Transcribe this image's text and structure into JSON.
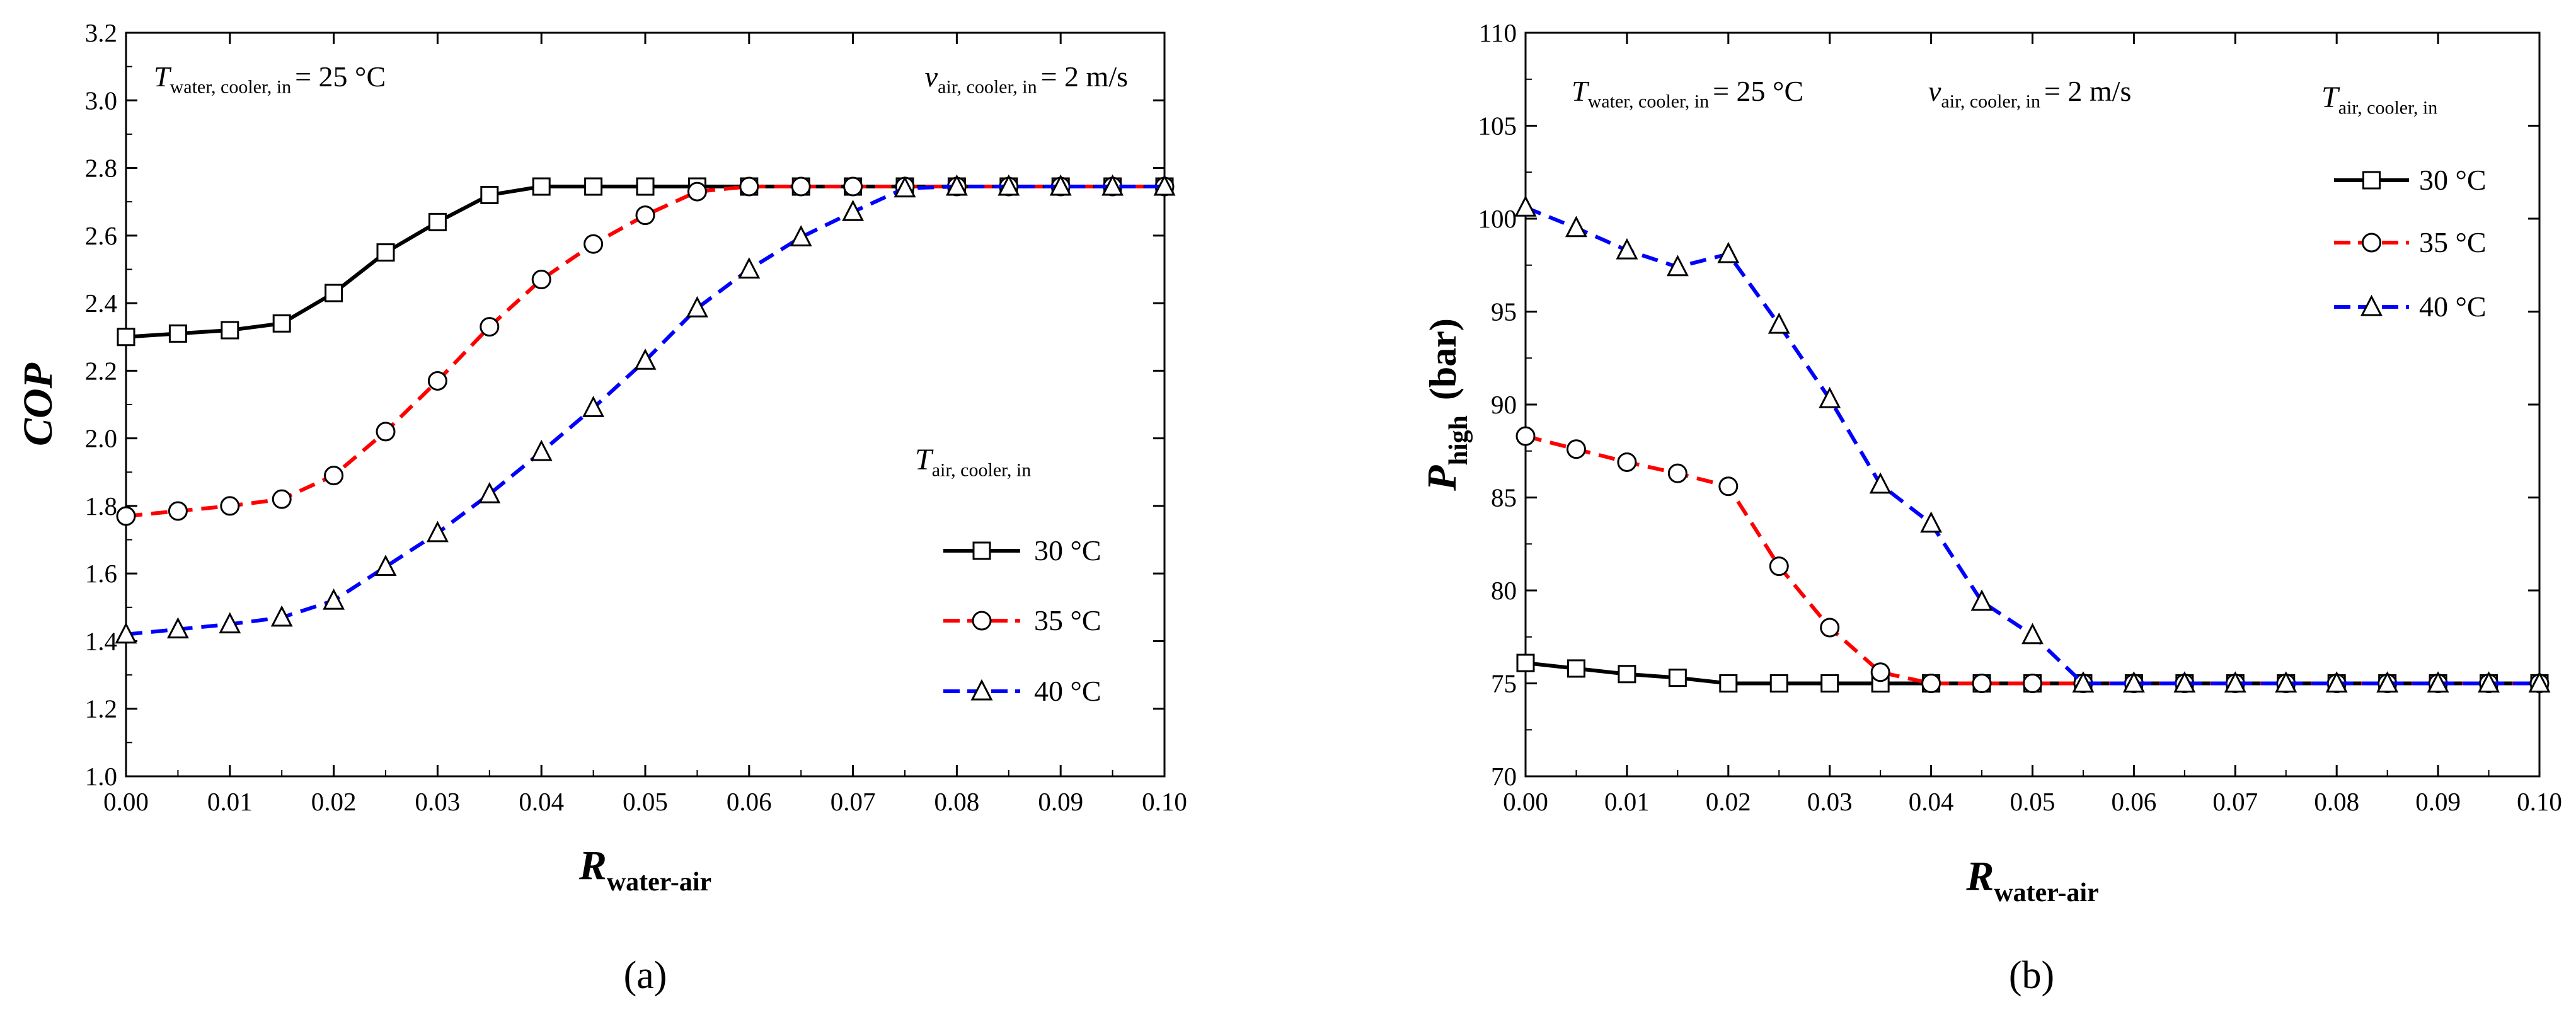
{
  "panel_labels": [
    "(a)",
    "(b)"
  ],
  "chart_data": [
    {
      "type": "line",
      "panel": "(a)",
      "title": "",
      "xlabel": {
        "main": "R",
        "sub": "water-air"
      },
      "ylabel": {
        "main": "COP",
        "sub": ""
      },
      "xlim": [
        0.0,
        0.1
      ],
      "ylim": [
        1.0,
        3.2
      ],
      "xticks": [
        0.0,
        0.01,
        0.02,
        0.03,
        0.04,
        0.05,
        0.06,
        0.07,
        0.08,
        0.09,
        0.1
      ],
      "xtick_labels": [
        "0.00",
        "0.01",
        "0.02",
        "0.03",
        "0.04",
        "0.05",
        "0.06",
        "0.07",
        "0.08",
        "0.09",
        "0.10"
      ],
      "yticks": [
        1.0,
        1.2,
        1.4,
        1.6,
        1.8,
        2.0,
        2.2,
        2.4,
        2.6,
        2.8,
        3.0,
        3.2
      ],
      "ytick_labels": [
        "1.0",
        "1.2",
        "1.4",
        "1.6",
        "1.8",
        "2.0",
        "2.2",
        "2.4",
        "2.6",
        "2.8",
        "3.0",
        "3.2"
      ],
      "grid": false,
      "annotations": [
        {
          "main": "T",
          "sub": "water, cooler, in",
          "rest": "= 25 °C",
          "position": "top-left"
        },
        {
          "main": "v",
          "sub": "air, cooler, in",
          "rest": "= 2 m/s",
          "position": "top-right"
        }
      ],
      "legend": {
        "title_main": "T",
        "title_sub": "air, cooler, in",
        "placement": "lower-right"
      },
      "x": [
        0.0,
        0.005,
        0.01,
        0.015,
        0.02,
        0.025,
        0.03,
        0.035,
        0.04,
        0.045,
        0.05,
        0.055,
        0.06,
        0.065,
        0.07,
        0.075,
        0.08,
        0.085,
        0.09,
        0.095,
        0.1
      ],
      "series": [
        {
          "name": "30 °C",
          "color": "#000000",
          "marker": "square",
          "dash": "solid",
          "values": [
            2.3,
            2.31,
            2.32,
            2.34,
            2.43,
            2.55,
            2.64,
            2.72,
            2.745,
            2.745,
            2.745,
            2.745,
            2.745,
            2.745,
            2.745,
            2.745,
            2.745,
            2.745,
            2.745,
            2.745,
            2.745
          ]
        },
        {
          "name": "35 °C",
          "color": "#ff0000",
          "marker": "circle",
          "dash": "dashed",
          "values": [
            1.77,
            1.785,
            1.8,
            1.82,
            1.89,
            2.02,
            2.17,
            2.33,
            2.47,
            2.575,
            2.66,
            2.73,
            2.745,
            2.745,
            2.745,
            2.745,
            2.745,
            2.745,
            2.745,
            2.745,
            2.745
          ]
        },
        {
          "name": "40 °C",
          "color": "#0000ff",
          "marker": "triangle",
          "dash": "dashed",
          "values": [
            1.42,
            1.435,
            1.45,
            1.47,
            1.52,
            1.62,
            1.72,
            1.835,
            1.96,
            2.09,
            2.23,
            2.385,
            2.5,
            2.595,
            2.67,
            2.74,
            2.745,
            2.745,
            2.745,
            2.745,
            2.745
          ]
        }
      ]
    },
    {
      "type": "line",
      "panel": "(b)",
      "title": "",
      "xlabel": {
        "main": "R",
        "sub": "water-air"
      },
      "ylabel": {
        "main": "P",
        "sub": "high",
        "rest": "(bar)"
      },
      "xlim": [
        0.0,
        0.1
      ],
      "ylim": [
        70,
        110
      ],
      "xticks": [
        0.0,
        0.01,
        0.02,
        0.03,
        0.04,
        0.05,
        0.06,
        0.07,
        0.08,
        0.09,
        0.1
      ],
      "xtick_labels": [
        "0.00",
        "0.01",
        "0.02",
        "0.03",
        "0.04",
        "0.05",
        "0.06",
        "0.07",
        "0.08",
        "0.09",
        "0.10"
      ],
      "yticks": [
        70,
        75,
        80,
        85,
        90,
        95,
        100,
        105,
        110
      ],
      "ytick_labels": [
        "70",
        "75",
        "80",
        "85",
        "90",
        "95",
        "100",
        "105",
        "110"
      ],
      "grid": false,
      "annotations": [
        {
          "main": "T",
          "sub": "water, cooler, in",
          "rest": "= 25 °C",
          "position": "top-left"
        },
        {
          "main": "v",
          "sub": "air, cooler, in",
          "rest": "= 2 m/s",
          "position": "top-center"
        }
      ],
      "legend": {
        "title_main": "T",
        "title_sub": "air, cooler, in",
        "placement": "upper-right"
      },
      "x": [
        0.0,
        0.005,
        0.01,
        0.015,
        0.02,
        0.025,
        0.03,
        0.035,
        0.04,
        0.045,
        0.05,
        0.055,
        0.06,
        0.065,
        0.07,
        0.075,
        0.08,
        0.085,
        0.09,
        0.095,
        0.1
      ],
      "series": [
        {
          "name": "30 °C",
          "color": "#000000",
          "marker": "square",
          "dash": "solid",
          "values": [
            76.1,
            75.8,
            75.5,
            75.3,
            75.0,
            75.0,
            75.0,
            75.0,
            75.0,
            75.0,
            75.0,
            75.0,
            75.0,
            75.0,
            75.0,
            75.0,
            75.0,
            75.0,
            75.0,
            75.0,
            75.0
          ]
        },
        {
          "name": "35 °C",
          "color": "#ff0000",
          "marker": "circle",
          "dash": "dashed",
          "values": [
            88.3,
            87.6,
            86.9,
            86.3,
            85.6,
            81.3,
            78.0,
            75.6,
            75.0,
            75.0,
            75.0,
            75.0,
            75.0,
            75.0,
            75.0,
            75.0,
            75.0,
            75.0,
            75.0,
            75.0,
            75.0
          ]
        },
        {
          "name": "40 °C",
          "color": "#0000ff",
          "marker": "triangle",
          "dash": "dashed",
          "values": [
            100.6,
            99.5,
            98.3,
            97.4,
            98.1,
            94.3,
            90.3,
            85.7,
            83.6,
            79.4,
            77.6,
            75.0,
            75.0,
            75.0,
            75.0,
            75.0,
            75.0,
            75.0,
            75.0,
            75.0,
            75.0
          ]
        }
      ]
    }
  ]
}
